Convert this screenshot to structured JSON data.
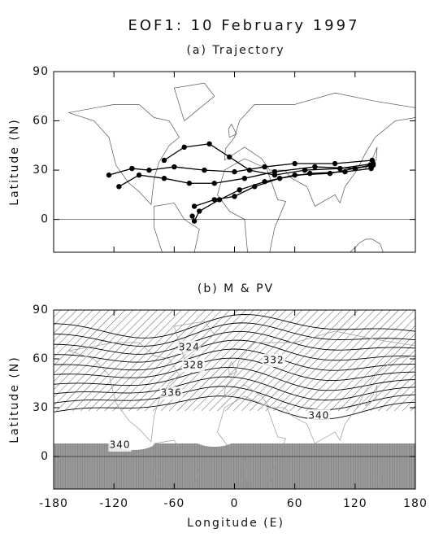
{
  "chart_data": [
    {
      "type": "line",
      "title": "EOF1: 10 February 1997",
      "subtitle": "(a) Trajectory",
      "ylabel": "Latitude (N)",
      "xlim": [
        -180,
        180
      ],
      "ylim": [
        -20,
        90
      ],
      "xticks": [
        -180,
        -120,
        -60,
        0,
        60,
        120,
        180
      ],
      "yticks": [
        0,
        30,
        60,
        90
      ],
      "series": [
        {
          "color": "#000000",
          "x": [
            -125,
            -102,
            -85,
            -60,
            -30,
            0,
            30,
            60,
            100,
            137
          ],
          "values": [
            27,
            31,
            30,
            32,
            30,
            29,
            32,
            34,
            34,
            36
          ]
        },
        {
          "color": "#000000",
          "x": [
            -115,
            -95,
            -70,
            -45,
            -20,
            10,
            40,
            80,
            120,
            138
          ],
          "values": [
            20,
            27,
            25,
            22,
            22,
            25,
            29,
            32,
            31,
            33
          ]
        },
        {
          "color": "#000000",
          "x": [
            -70,
            -50,
            -25,
            -5,
            15,
            40,
            70,
            105,
            138
          ],
          "values": [
            36,
            44,
            46,
            38,
            30,
            27,
            30,
            31,
            34
          ]
        },
        {
          "color": "#000000",
          "x": [
            -40,
            -20,
            0,
            20,
            45,
            75,
            110,
            136
          ],
          "values": [
            8,
            12,
            14,
            20,
            25,
            28,
            29,
            31
          ]
        },
        {
          "color": "#000000",
          "x": [
            -42,
            -40,
            -35,
            -15,
            5,
            30,
            60,
            95,
            135
          ],
          "values": [
            2,
            -1,
            5,
            12,
            18,
            23,
            27,
            28,
            33
          ]
        }
      ]
    },
    {
      "type": "contour",
      "subtitle": "(b) M & PV",
      "ylabel": "Latitude (N)",
      "xlabel": "Longitude (E)",
      "xlim": [
        -180,
        180
      ],
      "ylim": [
        -20,
        90
      ],
      "xticks": [
        -180,
        -120,
        -60,
        0,
        60,
        120,
        180
      ],
      "yticks": [
        0,
        30,
        60,
        90
      ],
      "annotations": [
        "324",
        "328",
        "332",
        "336",
        "340",
        "340"
      ]
    }
  ]
}
